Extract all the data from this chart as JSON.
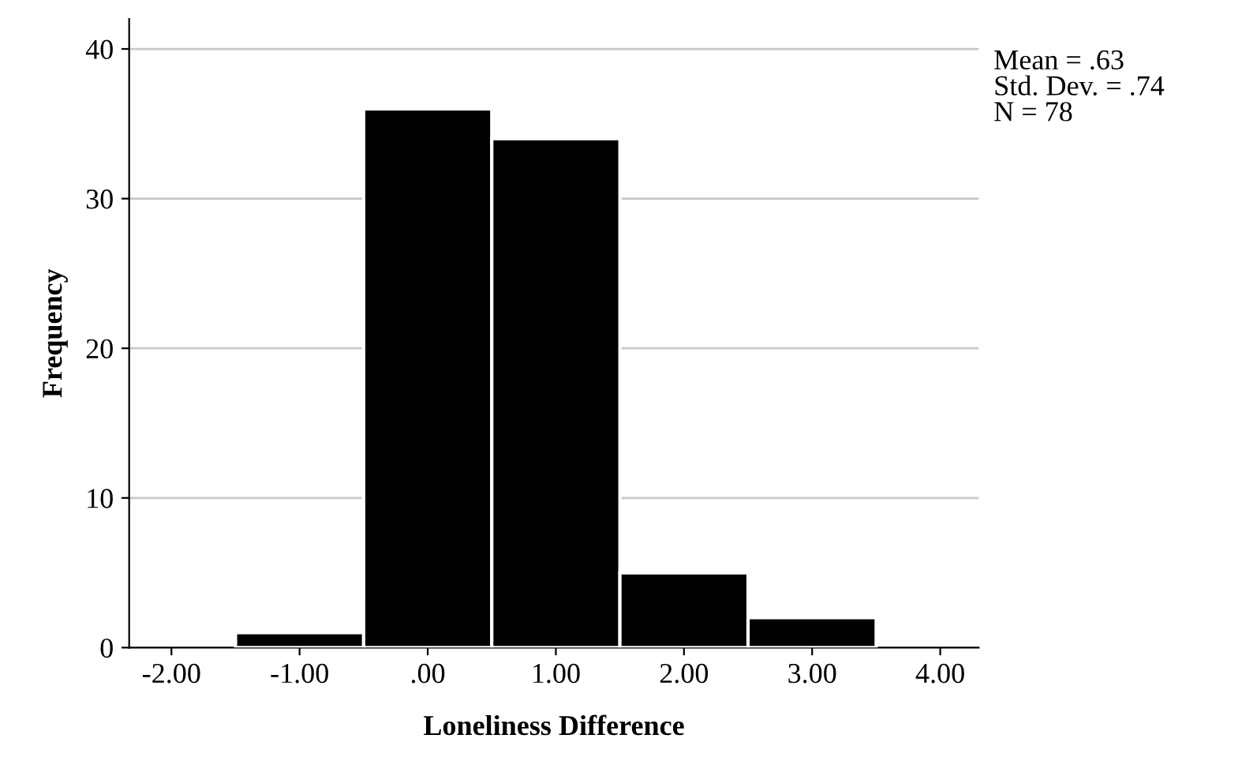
{
  "chart_data": {
    "type": "histogram",
    "xlabel": "Loneliness Difference",
    "ylabel": "Frequency",
    "bins": [
      -1.5,
      -0.5,
      0.5,
      1.5,
      2.5,
      3.5
    ],
    "values": [
      1,
      36,
      34,
      5,
      2
    ],
    "color": "#000000",
    "xlim": [
      -2.33,
      4.3
    ],
    "xticks": [
      {
        "value": -2,
        "label": "-2.00"
      },
      {
        "value": -1,
        "label": "-1.00"
      },
      {
        "value": 0,
        "label": ".00"
      },
      {
        "value": 1,
        "label": "1.00"
      },
      {
        "value": 2,
        "label": "2.00"
      },
      {
        "value": 3,
        "label": "3.00"
      },
      {
        "value": 4,
        "label": "4.00"
      }
    ],
    "ylim": [
      0,
      42
    ],
    "yticks": [
      0,
      10,
      20,
      30,
      40
    ],
    "grid": "y",
    "annotations": [
      "Mean = .63",
      "Std. Dev. = .74",
      "N = 78"
    ]
  }
}
